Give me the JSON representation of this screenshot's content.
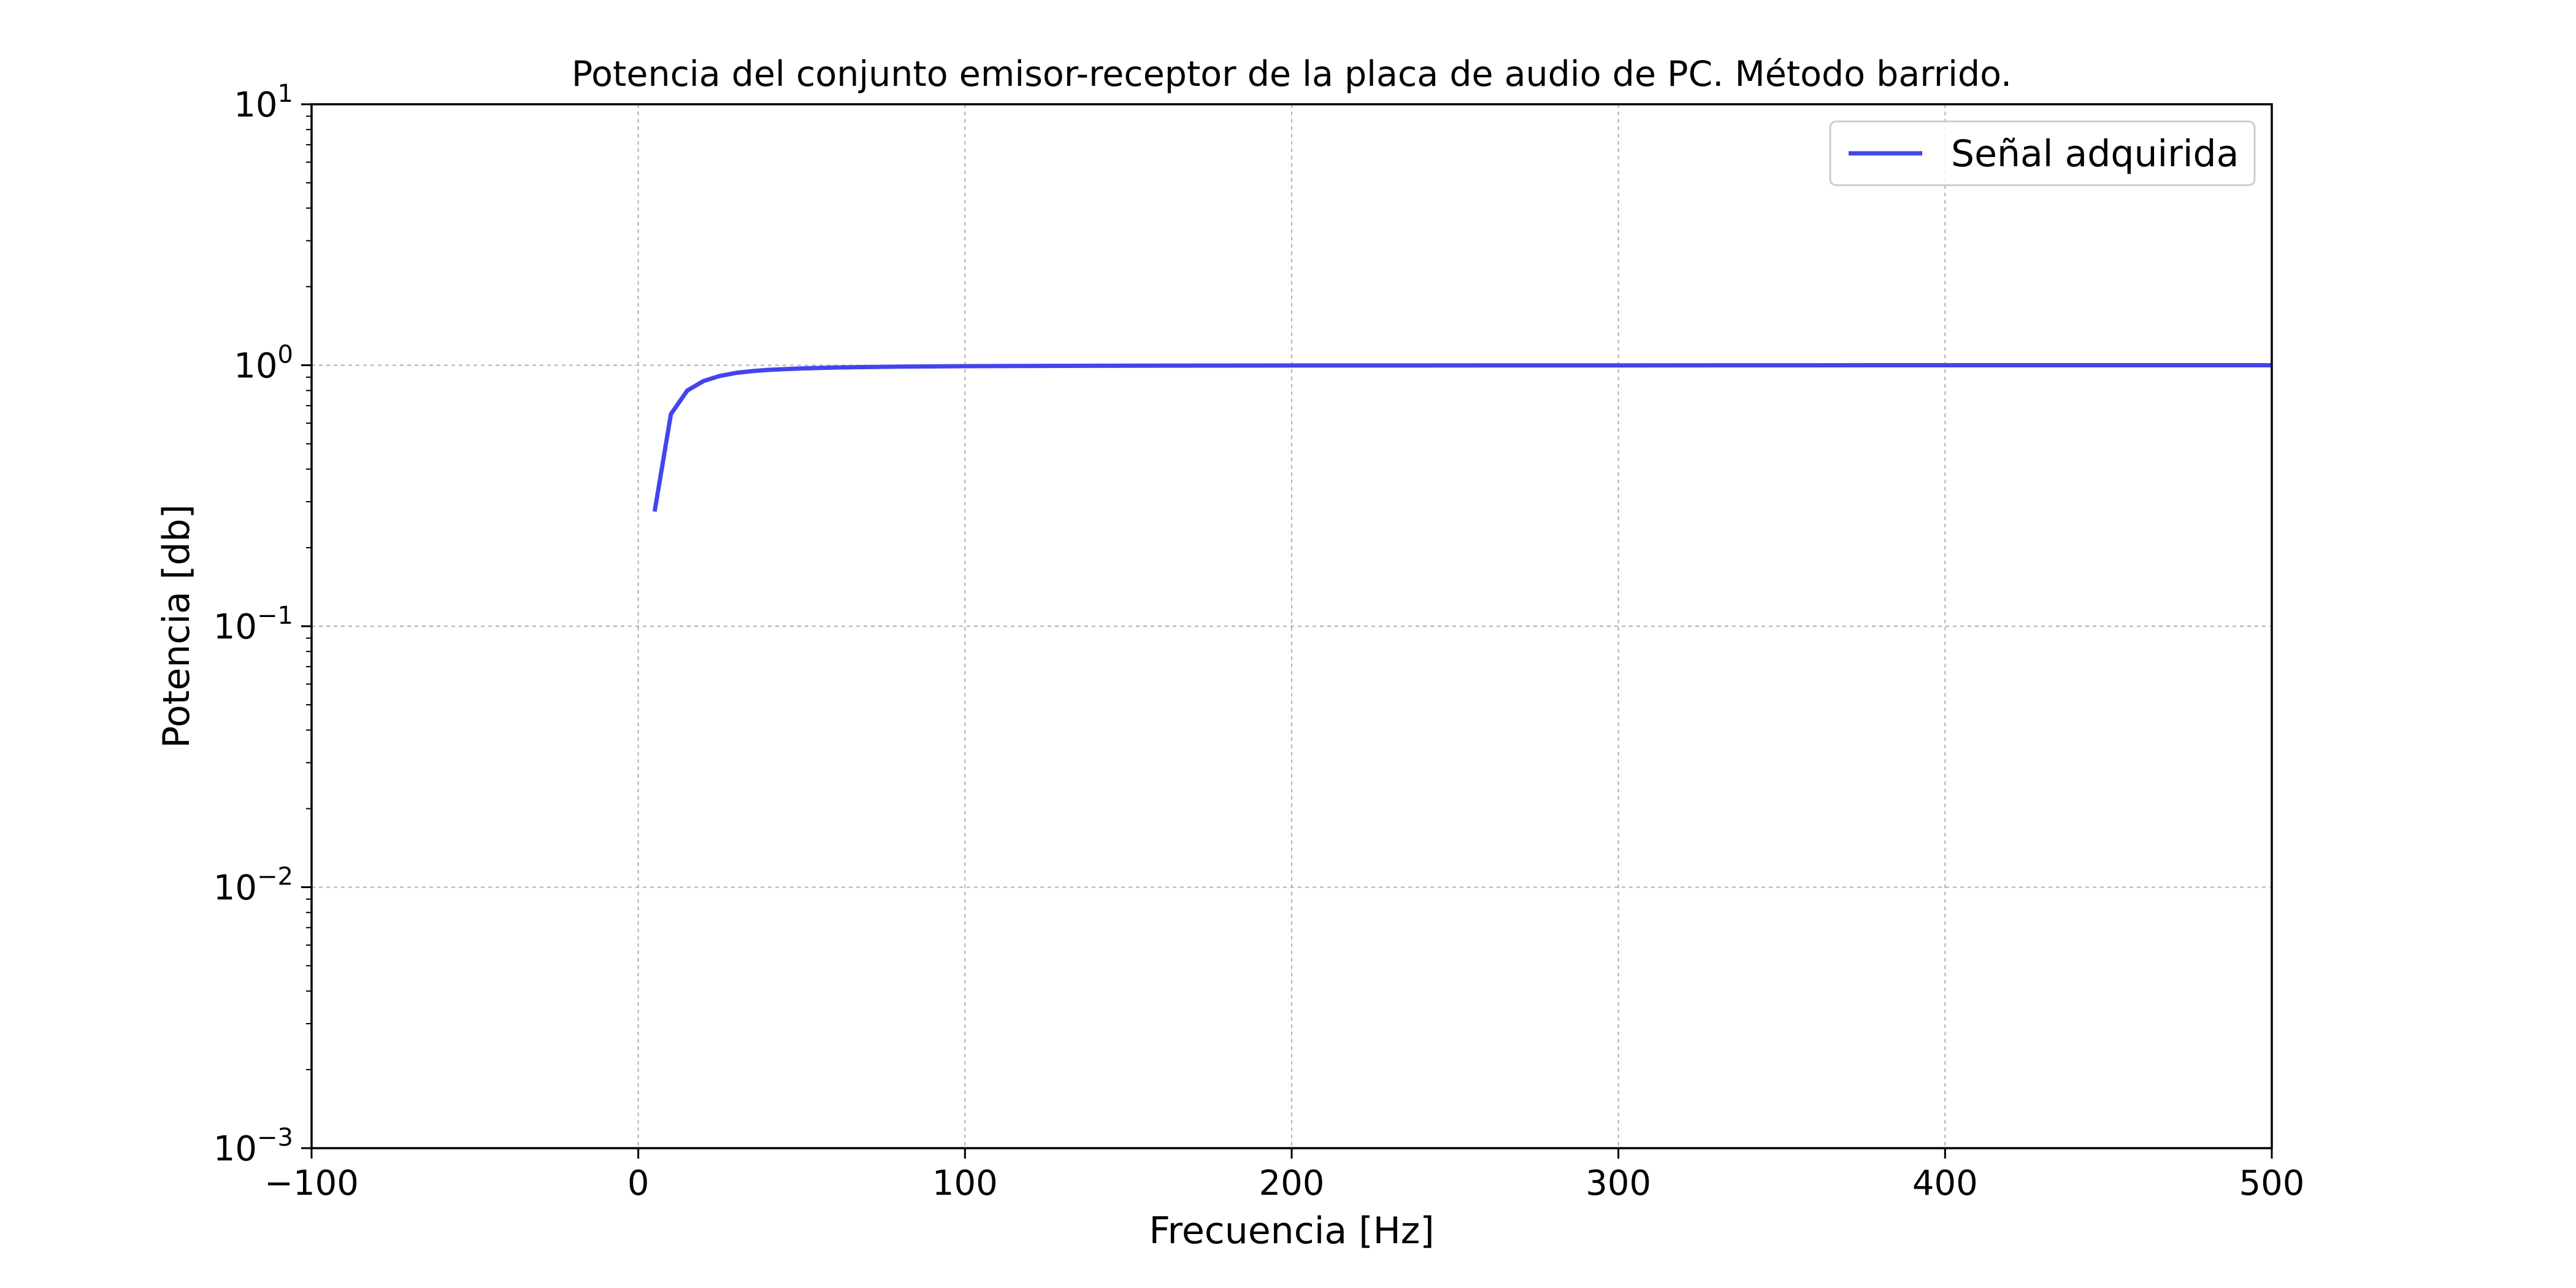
{
  "chart_data": {
    "type": "line",
    "title": "Potencia del conjunto emisor-receptor de la placa de audio de PC. Método barrido.",
    "xlabel": "Frecuencia [Hz]",
    "ylabel": "Potencia [db]",
    "xlim": [
      -100,
      500
    ],
    "ylim": [
      0.001,
      10
    ],
    "yscale": "log",
    "grid": true,
    "legend_position": "top-right",
    "x_ticks": [
      {
        "value": -100,
        "label": "−100"
      },
      {
        "value": 0,
        "label": "0"
      },
      {
        "value": 100,
        "label": "100"
      },
      {
        "value": 200,
        "label": "200"
      },
      {
        "value": 300,
        "label": "300"
      },
      {
        "value": 400,
        "label": "400"
      },
      {
        "value": 500,
        "label": "500"
      }
    ],
    "y_ticks": [
      {
        "value": 0.001,
        "base": "10",
        "exp": "−3"
      },
      {
        "value": 0.01,
        "base": "10",
        "exp": "−2"
      },
      {
        "value": 0.1,
        "base": "10",
        "exp": "−1"
      },
      {
        "value": 1,
        "base": "10",
        "exp": "0"
      },
      {
        "value": 10,
        "base": "10",
        "exp": "1"
      }
    ],
    "series": [
      {
        "name": "Señal adquirida",
        "color": "#4444ee",
        "x": [
          5,
          10,
          15,
          20,
          25,
          30,
          35,
          40,
          50,
          60,
          80,
          100,
          150,
          200,
          300,
          400,
          500
        ],
        "y": [
          0.275,
          0.65,
          0.8,
          0.87,
          0.91,
          0.935,
          0.95,
          0.96,
          0.972,
          0.98,
          0.988,
          0.992,
          0.996,
          0.998,
          0.999,
          1.0,
          1.0
        ]
      }
    ]
  }
}
